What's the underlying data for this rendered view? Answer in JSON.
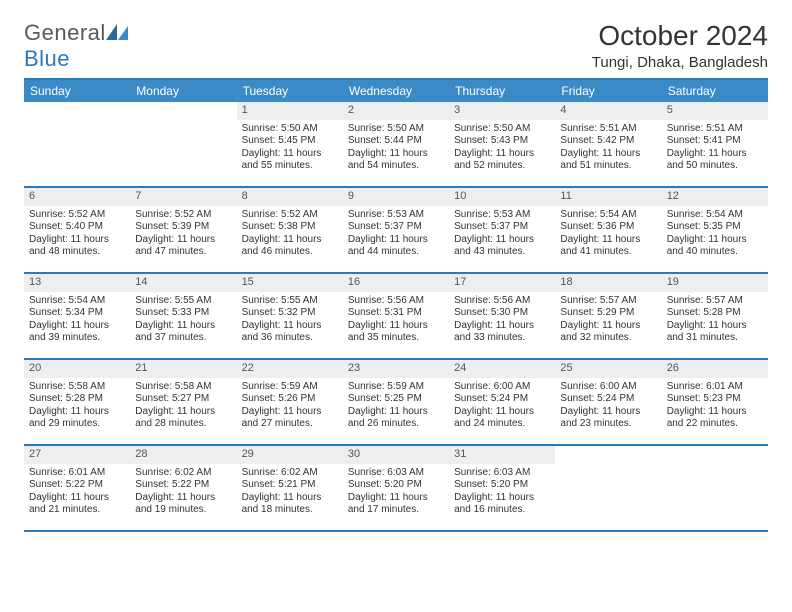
{
  "logo": {
    "text1": "General",
    "text2": "Blue"
  },
  "title": "October 2024",
  "location": "Tungi, Dhaka, Bangladesh",
  "colors": {
    "header_bg": "#3a8ac8",
    "border": "#2a7ab8",
    "daynum_bg": "#eceef0",
    "text": "#333333",
    "logo_gray": "#5a5a5a",
    "logo_blue": "#2a7ab8"
  },
  "day_headers": [
    "Sunday",
    "Monday",
    "Tuesday",
    "Wednesday",
    "Thursday",
    "Friday",
    "Saturday"
  ],
  "weeks": [
    [
      {
        "n": "",
        "sunrise": "",
        "sunset": "",
        "daylight": ""
      },
      {
        "n": "",
        "sunrise": "",
        "sunset": "",
        "daylight": ""
      },
      {
        "n": "1",
        "sunrise": "Sunrise: 5:50 AM",
        "sunset": "Sunset: 5:45 PM",
        "daylight": "Daylight: 11 hours and 55 minutes."
      },
      {
        "n": "2",
        "sunrise": "Sunrise: 5:50 AM",
        "sunset": "Sunset: 5:44 PM",
        "daylight": "Daylight: 11 hours and 54 minutes."
      },
      {
        "n": "3",
        "sunrise": "Sunrise: 5:50 AM",
        "sunset": "Sunset: 5:43 PM",
        "daylight": "Daylight: 11 hours and 52 minutes."
      },
      {
        "n": "4",
        "sunrise": "Sunrise: 5:51 AM",
        "sunset": "Sunset: 5:42 PM",
        "daylight": "Daylight: 11 hours and 51 minutes."
      },
      {
        "n": "5",
        "sunrise": "Sunrise: 5:51 AM",
        "sunset": "Sunset: 5:41 PM",
        "daylight": "Daylight: 11 hours and 50 minutes."
      }
    ],
    [
      {
        "n": "6",
        "sunrise": "Sunrise: 5:52 AM",
        "sunset": "Sunset: 5:40 PM",
        "daylight": "Daylight: 11 hours and 48 minutes."
      },
      {
        "n": "7",
        "sunrise": "Sunrise: 5:52 AM",
        "sunset": "Sunset: 5:39 PM",
        "daylight": "Daylight: 11 hours and 47 minutes."
      },
      {
        "n": "8",
        "sunrise": "Sunrise: 5:52 AM",
        "sunset": "Sunset: 5:38 PM",
        "daylight": "Daylight: 11 hours and 46 minutes."
      },
      {
        "n": "9",
        "sunrise": "Sunrise: 5:53 AM",
        "sunset": "Sunset: 5:37 PM",
        "daylight": "Daylight: 11 hours and 44 minutes."
      },
      {
        "n": "10",
        "sunrise": "Sunrise: 5:53 AM",
        "sunset": "Sunset: 5:37 PM",
        "daylight": "Daylight: 11 hours and 43 minutes."
      },
      {
        "n": "11",
        "sunrise": "Sunrise: 5:54 AM",
        "sunset": "Sunset: 5:36 PM",
        "daylight": "Daylight: 11 hours and 41 minutes."
      },
      {
        "n": "12",
        "sunrise": "Sunrise: 5:54 AM",
        "sunset": "Sunset: 5:35 PM",
        "daylight": "Daylight: 11 hours and 40 minutes."
      }
    ],
    [
      {
        "n": "13",
        "sunrise": "Sunrise: 5:54 AM",
        "sunset": "Sunset: 5:34 PM",
        "daylight": "Daylight: 11 hours and 39 minutes."
      },
      {
        "n": "14",
        "sunrise": "Sunrise: 5:55 AM",
        "sunset": "Sunset: 5:33 PM",
        "daylight": "Daylight: 11 hours and 37 minutes."
      },
      {
        "n": "15",
        "sunrise": "Sunrise: 5:55 AM",
        "sunset": "Sunset: 5:32 PM",
        "daylight": "Daylight: 11 hours and 36 minutes."
      },
      {
        "n": "16",
        "sunrise": "Sunrise: 5:56 AM",
        "sunset": "Sunset: 5:31 PM",
        "daylight": "Daylight: 11 hours and 35 minutes."
      },
      {
        "n": "17",
        "sunrise": "Sunrise: 5:56 AM",
        "sunset": "Sunset: 5:30 PM",
        "daylight": "Daylight: 11 hours and 33 minutes."
      },
      {
        "n": "18",
        "sunrise": "Sunrise: 5:57 AM",
        "sunset": "Sunset: 5:29 PM",
        "daylight": "Daylight: 11 hours and 32 minutes."
      },
      {
        "n": "19",
        "sunrise": "Sunrise: 5:57 AM",
        "sunset": "Sunset: 5:28 PM",
        "daylight": "Daylight: 11 hours and 31 minutes."
      }
    ],
    [
      {
        "n": "20",
        "sunrise": "Sunrise: 5:58 AM",
        "sunset": "Sunset: 5:28 PM",
        "daylight": "Daylight: 11 hours and 29 minutes."
      },
      {
        "n": "21",
        "sunrise": "Sunrise: 5:58 AM",
        "sunset": "Sunset: 5:27 PM",
        "daylight": "Daylight: 11 hours and 28 minutes."
      },
      {
        "n": "22",
        "sunrise": "Sunrise: 5:59 AM",
        "sunset": "Sunset: 5:26 PM",
        "daylight": "Daylight: 11 hours and 27 minutes."
      },
      {
        "n": "23",
        "sunrise": "Sunrise: 5:59 AM",
        "sunset": "Sunset: 5:25 PM",
        "daylight": "Daylight: 11 hours and 26 minutes."
      },
      {
        "n": "24",
        "sunrise": "Sunrise: 6:00 AM",
        "sunset": "Sunset: 5:24 PM",
        "daylight": "Daylight: 11 hours and 24 minutes."
      },
      {
        "n": "25",
        "sunrise": "Sunrise: 6:00 AM",
        "sunset": "Sunset: 5:24 PM",
        "daylight": "Daylight: 11 hours and 23 minutes."
      },
      {
        "n": "26",
        "sunrise": "Sunrise: 6:01 AM",
        "sunset": "Sunset: 5:23 PM",
        "daylight": "Daylight: 11 hours and 22 minutes."
      }
    ],
    [
      {
        "n": "27",
        "sunrise": "Sunrise: 6:01 AM",
        "sunset": "Sunset: 5:22 PM",
        "daylight": "Daylight: 11 hours and 21 minutes."
      },
      {
        "n": "28",
        "sunrise": "Sunrise: 6:02 AM",
        "sunset": "Sunset: 5:22 PM",
        "daylight": "Daylight: 11 hours and 19 minutes."
      },
      {
        "n": "29",
        "sunrise": "Sunrise: 6:02 AM",
        "sunset": "Sunset: 5:21 PM",
        "daylight": "Daylight: 11 hours and 18 minutes."
      },
      {
        "n": "30",
        "sunrise": "Sunrise: 6:03 AM",
        "sunset": "Sunset: 5:20 PM",
        "daylight": "Daylight: 11 hours and 17 minutes."
      },
      {
        "n": "31",
        "sunrise": "Sunrise: 6:03 AM",
        "sunset": "Sunset: 5:20 PM",
        "daylight": "Daylight: 11 hours and 16 minutes."
      },
      {
        "n": "",
        "sunrise": "",
        "sunset": "",
        "daylight": ""
      },
      {
        "n": "",
        "sunrise": "",
        "sunset": "",
        "daylight": ""
      }
    ]
  ]
}
